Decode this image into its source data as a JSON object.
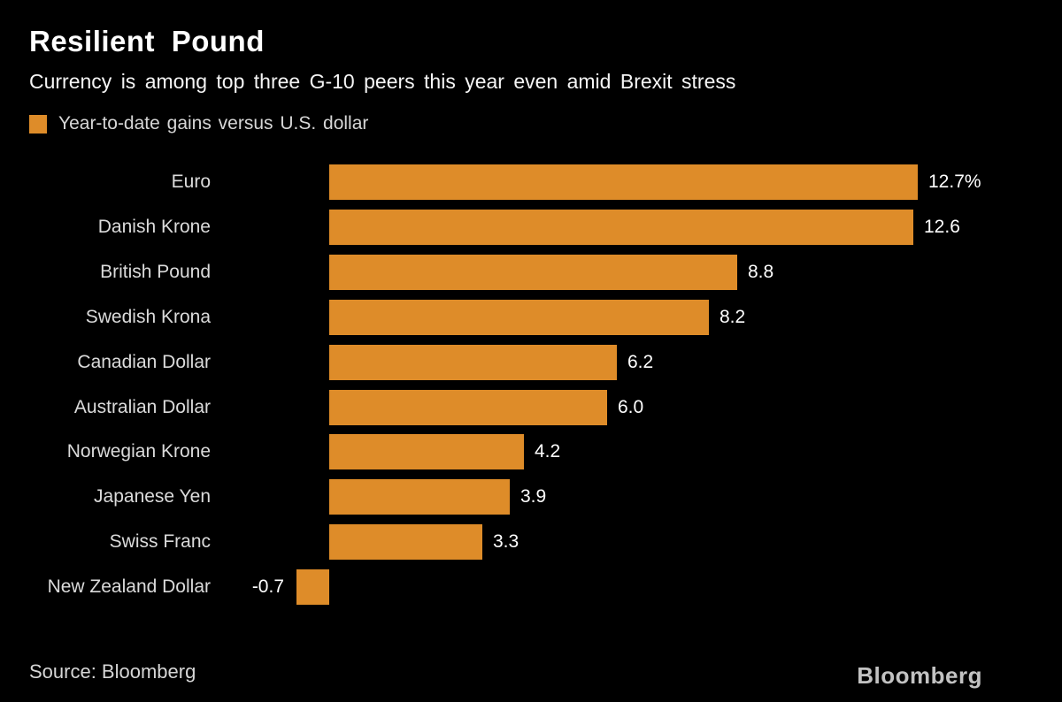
{
  "header": {
    "title": "Resilient Pound",
    "subtitle": "Currency is among top three G-10 peers this year even amid Brexit stress"
  },
  "legend": {
    "label": "Year-to-date gains versus U.S. dollar"
  },
  "chart_data": {
    "type": "bar",
    "orientation": "horizontal",
    "title": "Resilient Pound",
    "series_name": "Year-to-date gains versus U.S. dollar",
    "categories": [
      "Euro",
      "Danish Krone",
      "British Pound",
      "Swedish Krona",
      "Canadian Dollar",
      "Australian Dollar",
      "Norwegian Krone",
      "Japanese Yen",
      "Swiss Franc",
      "New Zealand Dollar"
    ],
    "values": [
      12.7,
      12.6,
      8.8,
      8.2,
      6.2,
      6.0,
      4.2,
      3.9,
      3.3,
      -0.7
    ],
    "value_labels": [
      "12.7%",
      "12.6",
      "8.8",
      "8.2",
      "6.2",
      "6.0",
      "4.2",
      "3.9",
      "3.3",
      "-0.7"
    ],
    "unit": "percent",
    "xlim": [
      -1,
      13
    ],
    "grid": false,
    "legend_position": "top-left"
  },
  "footer": {
    "source": "Source: Bloomberg",
    "brand": "Bloomberg"
  },
  "colors": {
    "background": "#000000",
    "bar": "#de8c29",
    "title_text": "#ffffff",
    "subtitle_text": "#f5f5f5",
    "category_text": "#dbdbdb",
    "value_text": "#ffffff",
    "legend_text": "#d6d6d6",
    "source_text": "#d6d6d6",
    "brand_text": "#c2c2c2"
  }
}
